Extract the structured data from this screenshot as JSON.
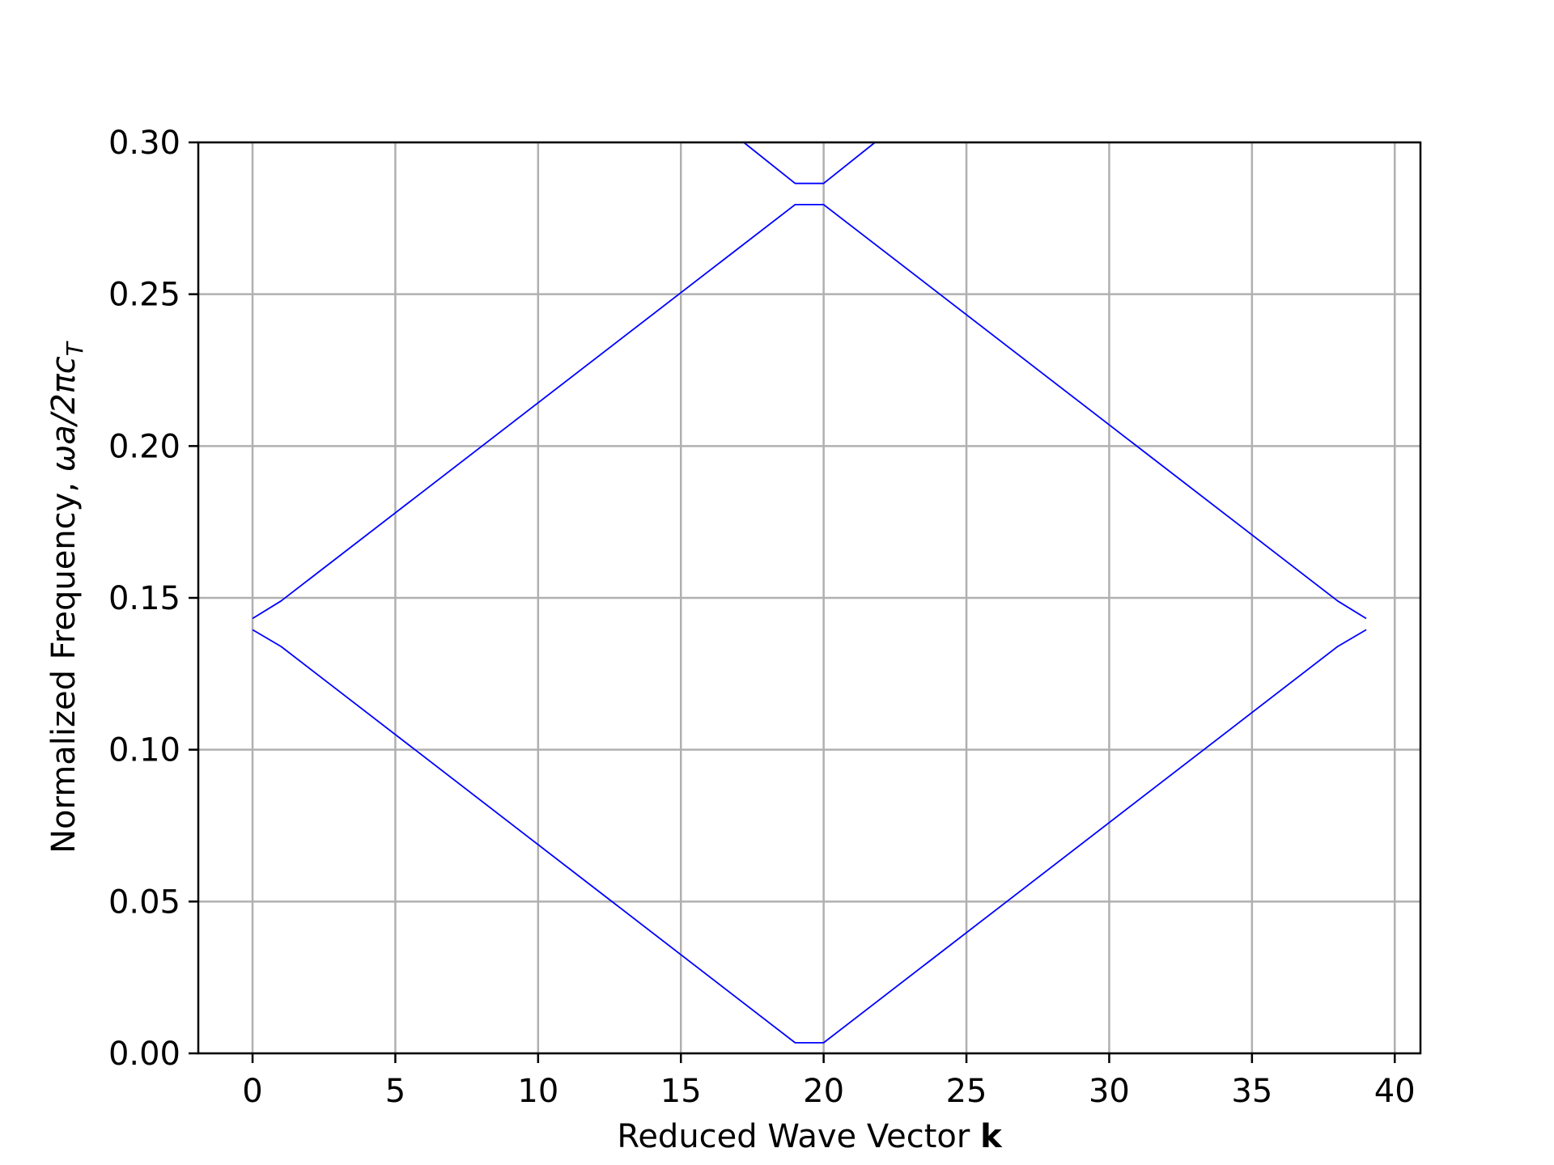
{
  "chart_data": {
    "type": "line",
    "title": "",
    "xlabel": "Reduced Wave Vector",
    "xlabel_bold": "k",
    "ylabel": "Normalized Frequency, ",
    "ylabel_math": "ωa/2πc",
    "ylabel_sub": "T",
    "xlim": [
      -1.9,
      40.9
    ],
    "ylim": [
      0.0,
      0.3
    ],
    "xticks": [
      0,
      5,
      10,
      15,
      20,
      25,
      30,
      35,
      40
    ],
    "xtick_labels": [
      "0",
      "5",
      "10",
      "15",
      "20",
      "25",
      "30",
      "35",
      "40"
    ],
    "yticks": [
      0.0,
      0.05,
      0.1,
      0.15,
      0.2,
      0.25,
      0.3
    ],
    "ytick_labels": [
      "0.00",
      "0.05",
      "0.10",
      "0.15",
      "0.20",
      "0.25",
      "0.30"
    ],
    "grid": true,
    "line_color": "#0000ff",
    "series": [
      {
        "x": [
          0,
          1,
          19,
          20,
          38,
          39
        ],
        "y": [
          0.1395,
          0.134,
          0.0035,
          0.0035,
          0.134,
          0.1395
        ]
      },
      {
        "x": [
          0,
          1,
          19,
          20,
          38,
          39
        ],
        "y": [
          0.1432,
          0.149,
          0.2795,
          0.2795,
          0.149,
          0.1432
        ]
      },
      {
        "x": [
          17.2,
          19,
          20,
          21.8
        ],
        "y": [
          0.3,
          0.2865,
          0.2865,
          0.3
        ]
      }
    ]
  }
}
